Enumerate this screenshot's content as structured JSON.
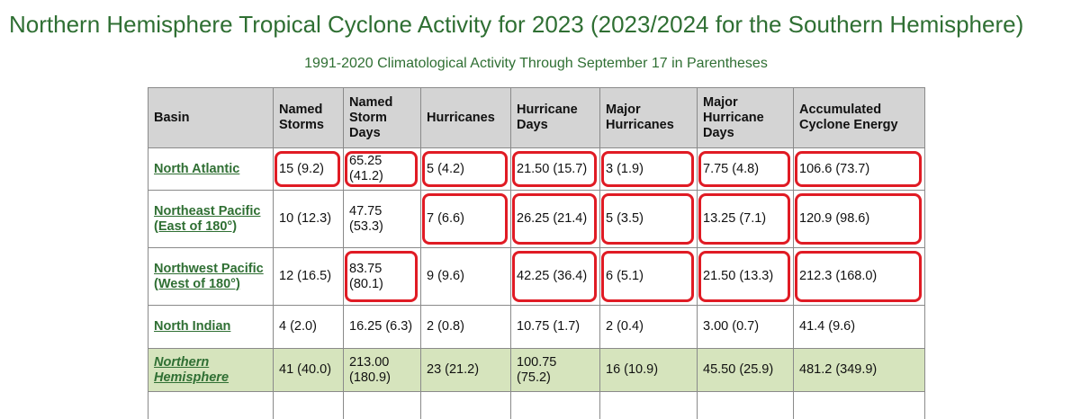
{
  "page": {
    "title": "Northern Hemisphere Tropical Cyclone Activity for 2023 (2023/2024 for the Southern Hemisphere)",
    "subtitle": "1991-2020 Climatological Activity Through September 17 in Parentheses"
  },
  "colors": {
    "title": "#2f6f33",
    "header_bg": "#d4d4d4",
    "total_row_bg": "#d6e4bd",
    "highlight": "#e01b24"
  },
  "table": {
    "headers": [
      "Basin",
      "Named Storms",
      "Named Storm Days",
      "Hurricanes",
      "Hurricane Days",
      "Major Hurricanes",
      "Major Hurricane Days",
      "Accumulated Cyclone Energy"
    ],
    "rows": [
      {
        "basin": "North Atlantic",
        "cells": [
          "15 (9.2)",
          "65.25 (41.2)",
          "5 (4.2)",
          "21.50 (15.7)",
          "3 (1.9)",
          "7.75 (4.8)",
          "106.6 (73.7)"
        ],
        "highlighted": [
          true,
          true,
          true,
          true,
          true,
          true,
          true
        ]
      },
      {
        "basin": "Northeast Pacific (East of 180°)",
        "cells": [
          "10 (12.3)",
          "47.75 (53.3)",
          "7 (6.6)",
          "26.25 (21.4)",
          "5 (3.5)",
          "13.25 (7.1)",
          "120.9 (98.6)"
        ],
        "highlighted": [
          false,
          false,
          true,
          true,
          true,
          true,
          true
        ]
      },
      {
        "basin": "Northwest Pacific (West of 180°)",
        "cells": [
          "12 (16.5)",
          "83.75 (80.1)",
          "9 (9.6)",
          "42.25 (36.4)",
          "6 (5.1)",
          "21.50 (13.3)",
          "212.3 (168.0)"
        ],
        "highlighted": [
          false,
          true,
          false,
          true,
          true,
          true,
          true
        ]
      },
      {
        "basin": "North Indian",
        "cells": [
          "4 (2.0)",
          "16.25 (6.3)",
          "2 (0.8)",
          "10.75 (1.7)",
          "2 (0.4)",
          "3.00 (0.7)",
          "41.4 (9.6)"
        ],
        "highlighted": [
          false,
          false,
          false,
          false,
          false,
          false,
          false
        ]
      },
      {
        "basin": "Northern Hemisphere",
        "cells": [
          "41 (40.0)",
          "213.00 (180.9)",
          "23 (21.2)",
          "100.75 (75.2)",
          "16 (10.9)",
          "45.50 (25.9)",
          "481.2 (349.9)"
        ],
        "highlighted": [
          false,
          false,
          false,
          false,
          false,
          false,
          false
        ]
      }
    ]
  }
}
